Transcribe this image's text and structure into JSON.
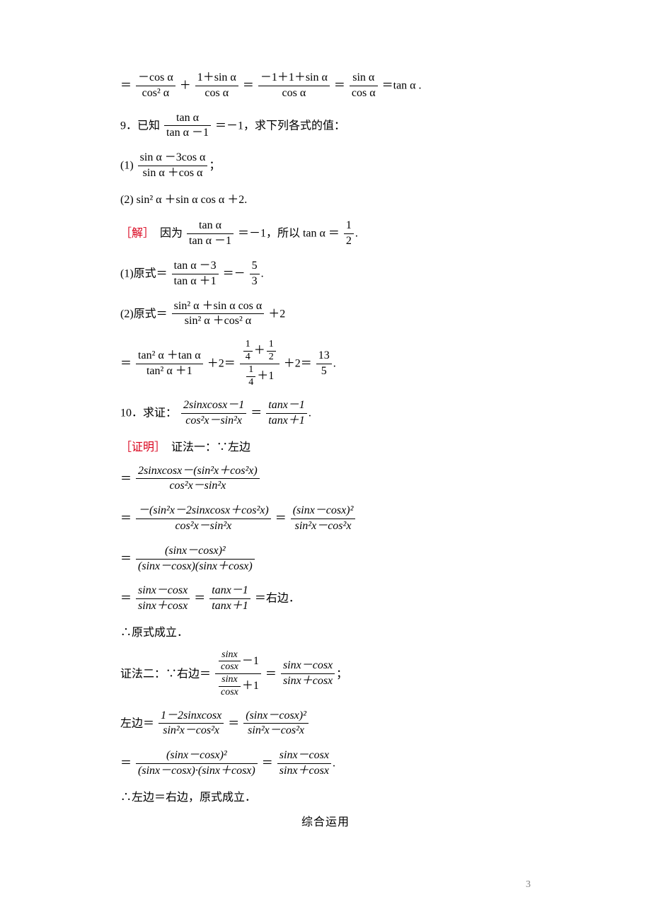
{
  "page_number": "3",
  "colors": {
    "text": "#000000",
    "red": "#d9001b",
    "page_num": "#808080",
    "background": "#ffffff"
  },
  "typography": {
    "body_size_pt": 12,
    "sup_size_pt": 8,
    "font_cn": "SimSun",
    "font_math": "Times New Roman"
  },
  "l1": {
    "eq_a": "＝",
    "f1n": "－cos α",
    "f1d": "cos² α",
    "plus1": "＋",
    "f2n": "1＋sin α",
    "f2d": "cos α",
    "eq_b": "＝",
    "f3n": "－1＋1＋sin α",
    "f3d": "cos α",
    "eq_c": "＝",
    "f4n": "sin α",
    "f4d": "cos α",
    "tail": "＝tan α ."
  },
  "q9": {
    "head": "9．已知",
    "fn": "tan α",
    "fd": "tan α －1",
    "tail": "＝－1，求下列各式的值："
  },
  "q9_1": {
    "pre": "(1)",
    "fn": "sin α －3cos α",
    "fd": "sin α ＋cos α",
    "tail": "；"
  },
  "q9_2": {
    "text": "(2) sin² α ＋sin α cos α ＋2."
  },
  "sol9a": {
    "label": "［解］",
    "pre": "　因为",
    "fn": "tan α",
    "fd": "tan α －1",
    "mid": "＝－1，所以 tan α ＝",
    "f2n": "1",
    "f2d": "2",
    "tail": "."
  },
  "sol9_1": {
    "pre": "(1)原式＝",
    "fn": "tan α －3",
    "fd": "tan α ＋1",
    "mid": "＝－",
    "f2n": "5",
    "f2d": "3",
    "tail": "."
  },
  "sol9_2a": {
    "pre": "(2)原式＝",
    "fn": "sin² α ＋sin α cos α",
    "fd": "sin² α ＋cos² α",
    "tail": "＋2"
  },
  "sol9_2b": {
    "eq": "＝",
    "f1n": "tan² α ＋tan α",
    "f1d": "tan² α ＋1",
    "plus1": "＋2＝",
    "f2n_top_n": "1",
    "f2n_top_d": "4",
    "f2n_plus": "＋",
    "f2n_bot_n": "1",
    "f2n_bot_d": "2",
    "f2d_top_n": "1",
    "f2d_top_d": "4",
    "f2d_plus": "＋1",
    "plus2": "＋2＝",
    "f3n": "13",
    "f3d": "5",
    "tail": "."
  },
  "q10": {
    "head": "10．求证：",
    "f1n": "2sinxcosx－1",
    "f1d": "cos²x－sin²x",
    "eq": "＝",
    "f2n": "tanx－1",
    "f2d": "tanx＋1",
    "tail": "."
  },
  "proof": {
    "label": "［证明］",
    "m1": "　证法一：∵左边"
  },
  "p10_1": {
    "eq": "＝",
    "fn": "2sinxcosx－(sin²x＋cos²x)",
    "fd": "cos²x－sin²x"
  },
  "p10_2": {
    "eq": "＝",
    "f1n": "－(sin²x－2sinxcosx＋cos²x)",
    "f1d": "cos²x－sin²x",
    "eq2": "＝",
    "f2n": "(sinx－cosx)²",
    "f2d": "sin²x－cos²x"
  },
  "p10_3": {
    "eq": "＝",
    "fn": "(sinx－cosx)²",
    "fd": "(sinx－cosx)(sinx＋cosx)"
  },
  "p10_4": {
    "eq": "＝",
    "f1n": "sinx－cosx",
    "f1d": "sinx＋cosx",
    "eq2": "＝",
    "f2n": "tanx－1",
    "f2d": "tanx＋1",
    "tail": "＝右边．"
  },
  "p10_5": "∴原式成立．",
  "p10_6": {
    "pre": "证法二：∵右边＝",
    "f1n_top_n": "sinx",
    "f1n_top_d": "cosx",
    "f1n_tail": "－1",
    "f1d_top_n": "sinx",
    "f1d_top_d": "cosx",
    "f1d_tail": "＋1",
    "eq": "＝",
    "f2n": "sinx－cosx",
    "f2d": "sinx＋cosx",
    "tail": "；"
  },
  "p10_7": {
    "pre": "左边＝",
    "f1n": "1－2sinxcosx",
    "f1d": "sin²x－cos²x",
    "eq": "＝",
    "f2n": "(sinx－cosx)²",
    "f2d": "sin²x－cos²x"
  },
  "p10_8": {
    "eq": "＝",
    "f1n": "(sinx－cosx)²",
    "f1d": "(sinx－cosx)·(sinx＋cosx)",
    "eq2": "＝",
    "f2n": "sinx－cosx",
    "f2d": "sinx＋cosx",
    "tail": "."
  },
  "p10_9": "∴左边＝右边，原式成立．",
  "footer": "综合运用"
}
